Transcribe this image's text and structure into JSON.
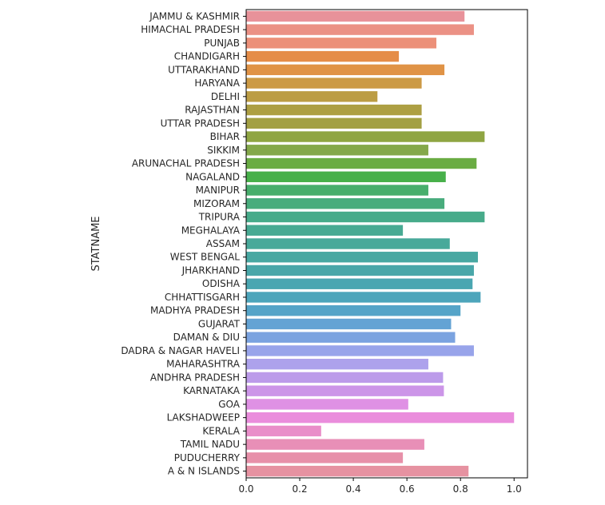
{
  "chart_data": {
    "type": "bar",
    "orientation": "horizontal",
    "ylabel": "STATNAME",
    "xlabel": "",
    "xlim": [
      0,
      1.05
    ],
    "xticks": [
      0.0,
      0.2,
      0.4,
      0.6,
      0.8,
      1.0
    ],
    "xtick_labels": [
      "0.0",
      "0.2",
      "0.4",
      "0.6",
      "0.8",
      "1.0"
    ],
    "grid": false,
    "categories": [
      "JAMMU & KASHMIR",
      "HIMACHAL PRADESH",
      "PUNJAB",
      "CHANDIGARH",
      "UTTARAKHAND",
      "HARYANA",
      "DELHI",
      "RAJASTHAN",
      "UTTAR PRADESH",
      "BIHAR",
      "SIKKIM",
      "ARUNACHAL PRADESH",
      "NAGALAND",
      "MANIPUR",
      "MIZORAM",
      "TRIPURA",
      "MEGHALAYA",
      "ASSAM",
      "WEST BENGAL",
      "JHARKHAND",
      "ODISHA",
      "CHHATTISGARH",
      "MADHYA PRADESH",
      "GUJARAT",
      "DAMAN & DIU",
      "DADRA & NAGAR HAVELI",
      "MAHARASHTRA",
      "ANDHRA PRADESH",
      "KARNATAKA",
      "GOA",
      "LAKSHADWEEP",
      "KERALA",
      "TAMIL NADU",
      "PUDUCHERRY",
      "A & N ISLANDS"
    ],
    "values": [
      0.815,
      0.85,
      0.71,
      0.57,
      0.74,
      0.655,
      0.49,
      0.655,
      0.655,
      0.89,
      0.68,
      0.86,
      0.745,
      0.68,
      0.74,
      0.89,
      0.585,
      0.76,
      0.865,
      0.85,
      0.845,
      0.875,
      0.8,
      0.765,
      0.78,
      0.85,
      0.68,
      0.735,
      0.738,
      0.605,
      1.0,
      0.28,
      0.665,
      0.585,
      0.83
    ],
    "colors": [
      "#e8929a",
      "#eb9185",
      "#ec9079",
      "#e58d48",
      "#e09346",
      "#cc9a45",
      "#bc9d44",
      "#ad9f43",
      "#a3a043",
      "#8fa542",
      "#84a84a",
      "#6aac43",
      "#47b04a",
      "#48ae6c",
      "#48ac7c",
      "#47ab8a",
      "#48aa93",
      "#48a99a",
      "#48a8a2",
      "#49a7a9",
      "#4aa6b1",
      "#4da5bb",
      "#55a4c8",
      "#64a3d4",
      "#7ba3e0",
      "#98a4ea",
      "#ada2ec",
      "#bc9bea",
      "#cc95e8",
      "#df91e4",
      "#ea8ddc",
      "#e98ec9",
      "#e88fb7",
      "#e790a9",
      "#e692a1"
    ]
  }
}
